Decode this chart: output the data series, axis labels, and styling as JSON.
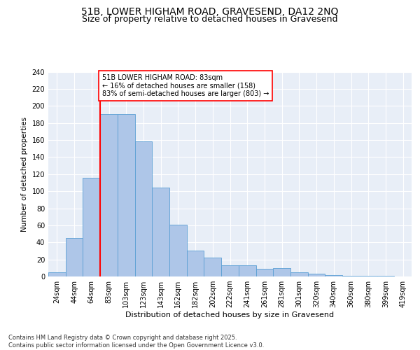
{
  "title_line1": "51B, LOWER HIGHAM ROAD, GRAVESEND, DA12 2NQ",
  "title_line2": "Size of property relative to detached houses in Gravesend",
  "xlabel": "Distribution of detached houses by size in Gravesend",
  "ylabel": "Number of detached properties",
  "categories": [
    "24sqm",
    "44sqm",
    "64sqm",
    "83sqm",
    "103sqm",
    "123sqm",
    "143sqm",
    "162sqm",
    "182sqm",
    "202sqm",
    "222sqm",
    "241sqm",
    "261sqm",
    "281sqm",
    "301sqm",
    "320sqm",
    "340sqm",
    "360sqm",
    "380sqm",
    "399sqm",
    "419sqm"
  ],
  "values": [
    5,
    45,
    116,
    190,
    190,
    158,
    104,
    61,
    30,
    22,
    13,
    13,
    9,
    10,
    5,
    3,
    2,
    1,
    1,
    1,
    0
  ],
  "bar_color": "#aec6e8",
  "bar_edge_color": "#5a9fd4",
  "red_line_index": 3,
  "annotation_text": "51B LOWER HIGHAM ROAD: 83sqm\n← 16% of detached houses are smaller (158)\n83% of semi-detached houses are larger (803) →",
  "annotation_box_color": "white",
  "annotation_box_edge_color": "red",
  "ylim": [
    0,
    240
  ],
  "yticks": [
    0,
    20,
    40,
    60,
    80,
    100,
    120,
    140,
    160,
    180,
    200,
    220,
    240
  ],
  "bg_color": "#e8eef7",
  "grid_color": "white",
  "footnote": "Contains HM Land Registry data © Crown copyright and database right 2025.\nContains public sector information licensed under the Open Government Licence v3.0.",
  "title_fontsize": 10,
  "subtitle_fontsize": 9,
  "label_fontsize": 7.5,
  "tick_fontsize": 7,
  "annotation_fontsize": 7,
  "footnote_fontsize": 6
}
